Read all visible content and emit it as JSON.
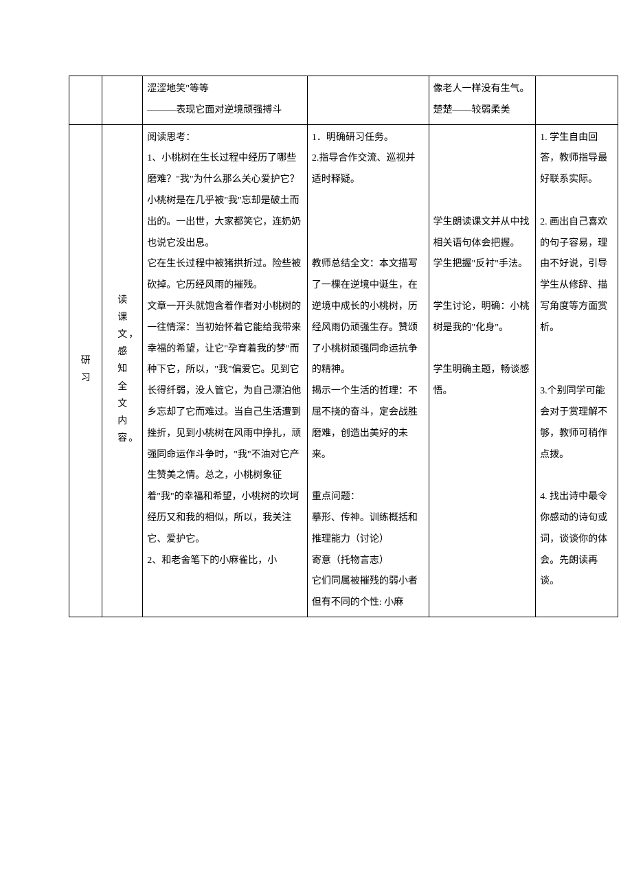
{
  "row1": {
    "col3": "涩涩地笑\"等等\n———表现它面对逆境顽强搏斗",
    "col5": "像老人一样没有生气。\n楚楚——较弱柔美"
  },
  "row2": {
    "col1": "研 习",
    "col2": "读课文，感知全文内容。",
    "col3": "阅读思考：\n1、小桃树在生长过程中经历了哪些磨难？\"我\"为什么那么关心爱护它？\n小桃树是在几乎被\"我\"忘却是破土而出的。一出世，大家都笑它，连奶奶也说它没出息。\n它在生长过程中被猪拱折过。险些被砍掉。它历经风雨的摧残。\n文章一开头就饱含着作者对小桃树的一往情深：当初始怀着它能给我带来幸福的希望，让它\"孕育着我的梦\"而种下它，所以，\"我\"偏爱它。见到它长得纤弱，没人管它，为自己漂泊他乡忘却了它而难过。当自己生活遭到挫折，见到小桃树在风雨中挣扎，顽强同命运作斗争时，\"我\"不油对它产生赞美之情。总之，小桃树象征着\"我\"的幸福和希望，小桃树的坎坷经历又和我的相似，所以，我关注它、爱护它。\n2、和老舍笔下的小麻雀比，小",
    "col4": "1．明确研习任务。\n2.指导合作交流、巡视并适时释疑。\n\n\n\n教师总结全文：本文描写了一棵在逆境中诞生，在逆境中成长的小桃树，历经风雨仍顽强生存。赞颂了小桃树顽强同命运抗争的精神。\n揭示一个生活的哲理：不屈不挠的奋斗，定会战胜磨难，创造出美好的未来。\n\n重点问题：\n摹形、传神。训练概括和推理能力（讨论）\n寄意（托物言志）\n它们同属被摧残的弱小者\n但有不同的个性: 小麻",
    "col5": "\n\n\n\n学生朗读课文并从中找相关语句体会把握。\n学生把握\"反衬\"手法。\n\n学生讨论，明确：小桃树是我的\"化身\"。\n\n学生明确主题，畅谈感悟。",
    "col6": "1. 学生自由回答，教师指导最好联系实际。\n\n2. 画出自己喜欢的句子容易，理由不好说，引导学生从修辞、描写角度等方面赏析。\n\n\n3.个别同学可能会对于赏理解不够，教师可稍作点拨。\n\n4. 找出诗中最令你感动的诗句或词，谈谈你的体会。先朗读再谈。"
  }
}
